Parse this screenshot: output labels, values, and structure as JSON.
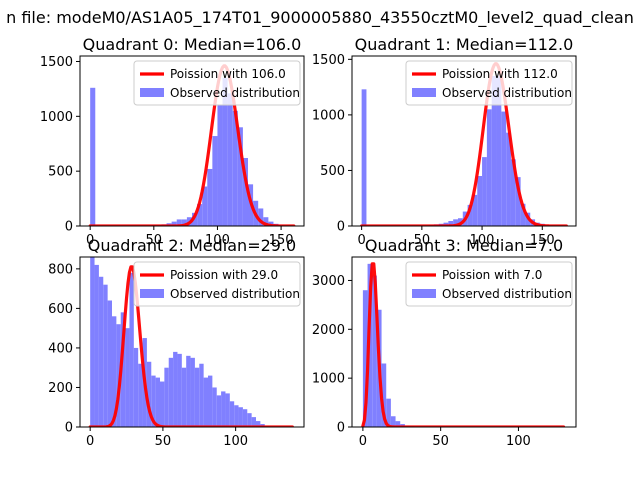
{
  "figure": {
    "suptitle": "n file: modeM0/AS1A05_174T01_9000005880_43550cztM0_level2_quad_clean"
  },
  "colors": {
    "hist": "#8080ff",
    "fit": "#ff0000"
  },
  "chart_data": [
    {
      "type": "bar",
      "title": "Quadrant 0: Median=106.0",
      "xlim": [
        -8,
        168
      ],
      "ylim": [
        0,
        1550
      ],
      "xticks": [
        0,
        50,
        100,
        150
      ],
      "yticks": [
        0,
        500,
        1000,
        1500
      ],
      "legend_position": "top-right",
      "bin_width": 4,
      "hist_series": {
        "name": "Observed distribution",
        "x": [
          0,
          4,
          8,
          12,
          16,
          20,
          24,
          28,
          32,
          36,
          40,
          44,
          48,
          52,
          56,
          60,
          64,
          68,
          72,
          76,
          80,
          84,
          88,
          92,
          96,
          100,
          104,
          108,
          112,
          116,
          120,
          124,
          128,
          132,
          136,
          140,
          144,
          148,
          152,
          156
        ],
        "values": [
          1260,
          0,
          0,
          0,
          0,
          0,
          0,
          0,
          0,
          0,
          5,
          5,
          10,
          10,
          15,
          25,
          40,
          60,
          60,
          80,
          120,
          200,
          360,
          520,
          820,
          1100,
          1350,
          1210,
          1050,
          900,
          620,
          380,
          230,
          160,
          80,
          40,
          20,
          10,
          5,
          0
        ]
      },
      "fit_series": {
        "name": "Poission with 106.0",
        "mu": 106.0,
        "amplitude": 1460
      }
    },
    {
      "type": "bar",
      "title": "Quadrant 1: Median=112.0",
      "xlim": [
        -8,
        178
      ],
      "ylim": [
        0,
        1530
      ],
      "xticks": [
        0,
        50,
        100,
        150
      ],
      "yticks": [
        0,
        500,
        1000,
        1500
      ],
      "legend_position": "top-right",
      "bin_width": 4,
      "hist_series": {
        "name": "Observed distribution",
        "x": [
          0,
          4,
          8,
          12,
          16,
          20,
          24,
          28,
          32,
          36,
          40,
          44,
          48,
          52,
          56,
          60,
          64,
          68,
          72,
          76,
          80,
          84,
          88,
          92,
          96,
          100,
          104,
          108,
          112,
          116,
          120,
          124,
          128,
          132,
          136,
          140,
          144,
          148,
          152,
          156,
          160,
          164
        ],
        "values": [
          1230,
          0,
          0,
          0,
          0,
          0,
          0,
          0,
          0,
          0,
          0,
          0,
          5,
          5,
          10,
          15,
          20,
          30,
          45,
          60,
          70,
          130,
          190,
          280,
          450,
          620,
          1050,
          1350,
          1350,
          1030,
          840,
          600,
          440,
          200,
          120,
          60,
          30,
          20,
          10,
          0,
          0,
          0
        ]
      },
      "fit_series": {
        "name": "Poission with 112.0",
        "mu": 112.0,
        "amplitude": 1460
      }
    },
    {
      "type": "bar",
      "title": "Quadrant 2: Median=29.0",
      "xlim": [
        -7,
        147
      ],
      "ylim": [
        0,
        860
      ],
      "xticks": [
        0,
        50,
        100
      ],
      "yticks": [
        0,
        200,
        400,
        600,
        800
      ],
      "legend_position": "top-right",
      "bin_width": 3,
      "hist_series": {
        "name": "Observed distribution",
        "x": [
          0,
          3,
          6,
          9,
          12,
          15,
          18,
          21,
          24,
          27,
          30,
          33,
          36,
          39,
          42,
          45,
          48,
          51,
          54,
          57,
          60,
          63,
          66,
          69,
          72,
          75,
          78,
          81,
          84,
          87,
          90,
          93,
          96,
          99,
          102,
          105,
          108,
          111,
          114,
          117,
          120
        ],
        "values": [
          860,
          820,
          760,
          720,
          640,
          560,
          520,
          580,
          500,
          780,
          400,
          320,
          450,
          330,
          260,
          250,
          230,
          300,
          350,
          380,
          370,
          300,
          360,
          350,
          300,
          320,
          250,
          260,
          200,
          160,
          180,
          170,
          130,
          110,
          100,
          90,
          70,
          50,
          30,
          15,
          5
        ]
      },
      "fit_series": {
        "name": "Poission with 29.0",
        "mu": 29.0,
        "amplitude": 810
      }
    },
    {
      "type": "bar",
      "title": "Quadrant 3: Median=7.0",
      "xlim": [
        -7,
        137
      ],
      "ylim": [
        0,
        3480
      ],
      "xticks": [
        0,
        50,
        100
      ],
      "yticks": [
        0,
        1000,
        2000,
        3000
      ],
      "legend_position": "top-right",
      "bin_width": 3,
      "hist_series": {
        "name": "Observed distribution",
        "x": [
          0,
          3,
          6,
          9,
          12,
          15,
          18,
          21,
          24,
          27,
          30,
          33,
          36,
          39,
          42,
          45,
          48,
          51,
          54,
          57,
          60,
          63,
          66,
          69,
          72,
          75,
          78,
          81,
          84,
          87,
          90,
          93,
          96,
          99,
          102,
          105,
          108,
          111,
          114,
          117,
          120,
          123,
          126
        ],
        "values": [
          2800,
          3340,
          3100,
          2400,
          1300,
          580,
          220,
          120,
          60,
          30,
          20,
          10,
          5,
          5,
          5,
          5,
          5,
          5,
          5,
          5,
          5,
          5,
          5,
          5,
          5,
          5,
          5,
          5,
          5,
          5,
          5,
          5,
          5,
          5,
          5,
          5,
          5,
          5,
          5,
          5,
          5,
          5,
          5
        ]
      },
      "fit_series": {
        "name": "Poission with 7.0",
        "mu": 7.0,
        "amplitude": 3340
      }
    }
  ]
}
